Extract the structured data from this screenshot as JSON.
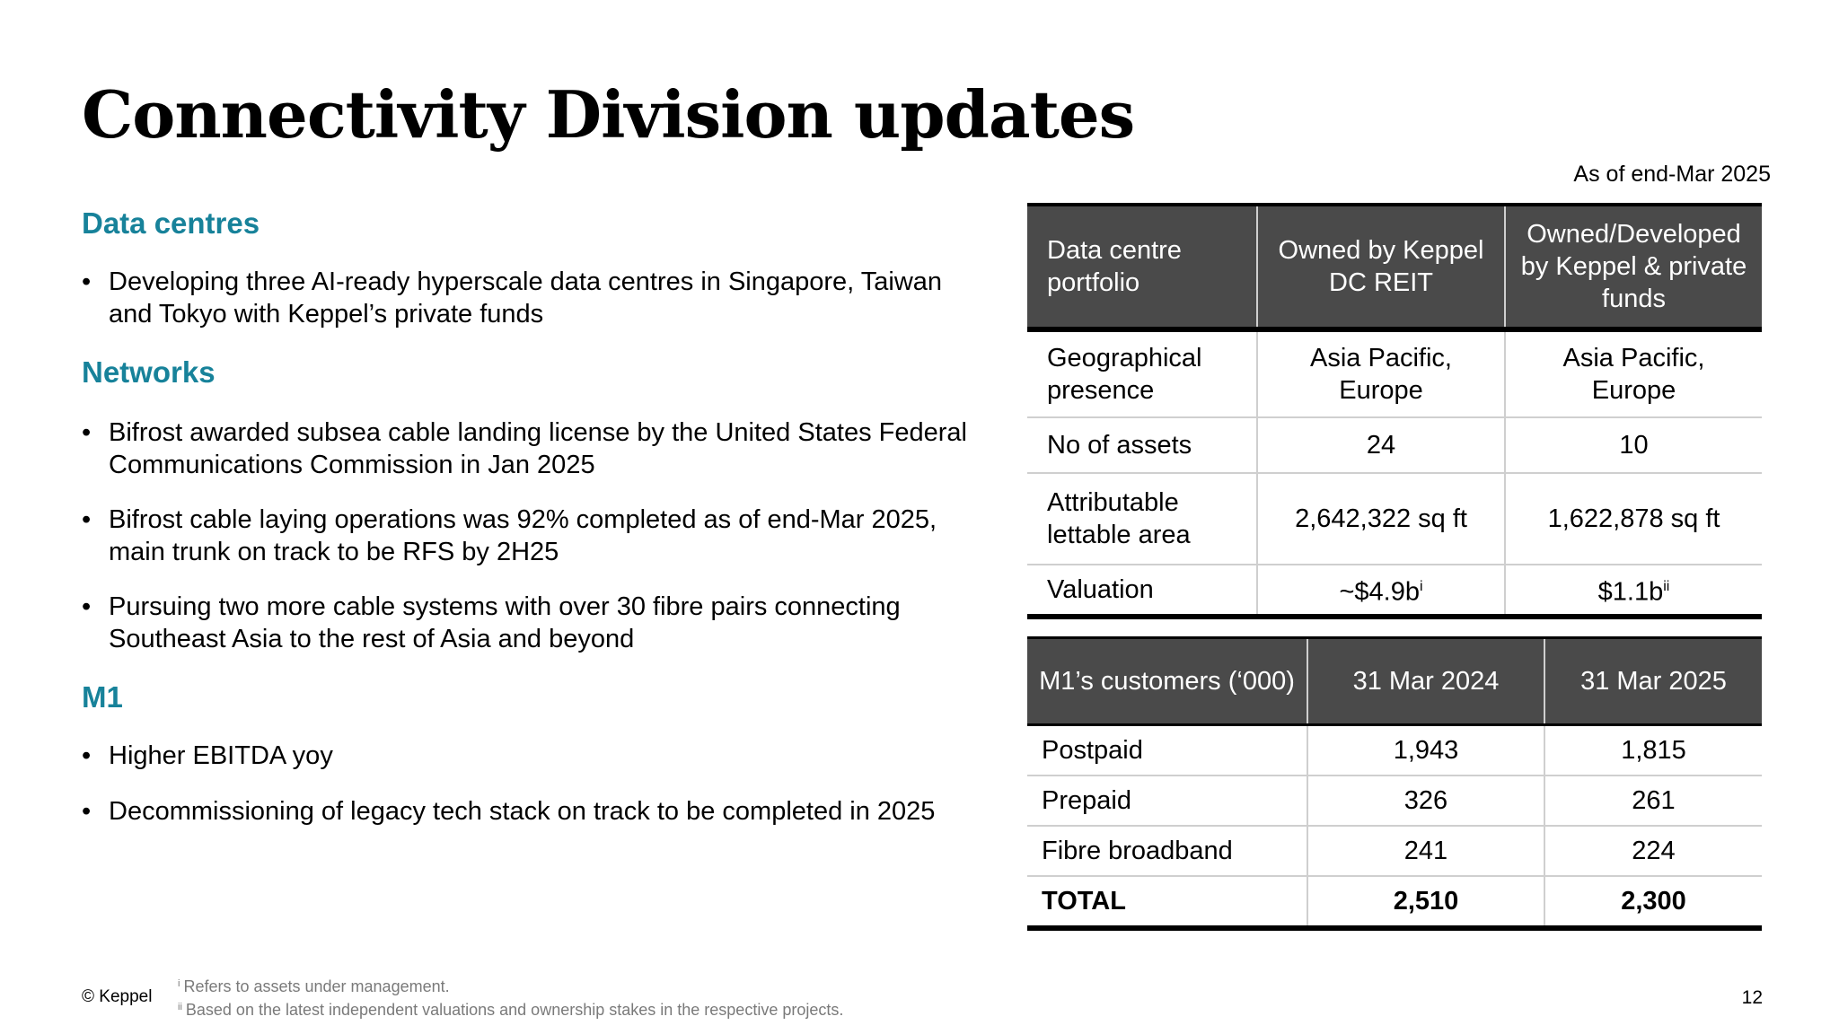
{
  "title": "Connectivity Division updates",
  "as_of": "As of end-Mar 2025",
  "sections": [
    {
      "heading": "Data centres",
      "bullets": [
        "Developing three AI-ready hyperscale data centres in Singapore, Taiwan and Tokyo with Keppel’s private funds"
      ]
    },
    {
      "heading": "Networks",
      "bullets": [
        "Bifrost awarded subsea cable landing license by the United States Federal Communications Commission in Jan 2025",
        "Bifrost cable laying operations was 92% completed as of end-Mar 2025, main trunk on track to be RFS by 2H25",
        "Pursuing two more cable systems with over 30 fibre pairs connecting Southeast Asia to the rest of Asia and beyond"
      ]
    },
    {
      "heading": "M1",
      "bullets": [
        "Higher EBITDA yoy",
        "Decommissioning of legacy tech stack on track to be completed in 2025"
      ]
    }
  ],
  "dc_table": {
    "headers": [
      "Data centre portfolio",
      "Owned by Keppel DC REIT",
      "Owned/Developed by Keppel & private funds"
    ],
    "rows": [
      [
        "Geographical presence",
        "Asia Pacific, Europe",
        "Asia Pacific, Europe"
      ],
      [
        "No of assets",
        "24",
        "10"
      ],
      [
        "Attributable lettable area",
        "2,642,322 sq ft",
        "1,622,878 sq ft"
      ],
      [
        "Valuation",
        "~$4.9b",
        "$1.1b"
      ]
    ],
    "valuation_marks": [
      "i",
      "ii"
    ]
  },
  "m1_table": {
    "headers": [
      "M1’s customers (‘000)",
      "31 Mar 2024",
      "31 Mar 2025"
    ],
    "rows": [
      [
        "Postpaid",
        "1,943",
        "1,815"
      ],
      [
        "Prepaid",
        "326",
        "261"
      ],
      [
        "Fibre broadband",
        "241",
        "224"
      ]
    ],
    "total": [
      "TOTAL",
      "2,510",
      "2,300"
    ]
  },
  "footer": {
    "copyright": "© Keppel",
    "notes": [
      {
        "mark": "i",
        "text": "Refers to assets under management."
      },
      {
        "mark": "ii",
        "text": "Based on the latest independent valuations and ownership stakes in the respective projects."
      }
    ],
    "page_number": "12"
  }
}
